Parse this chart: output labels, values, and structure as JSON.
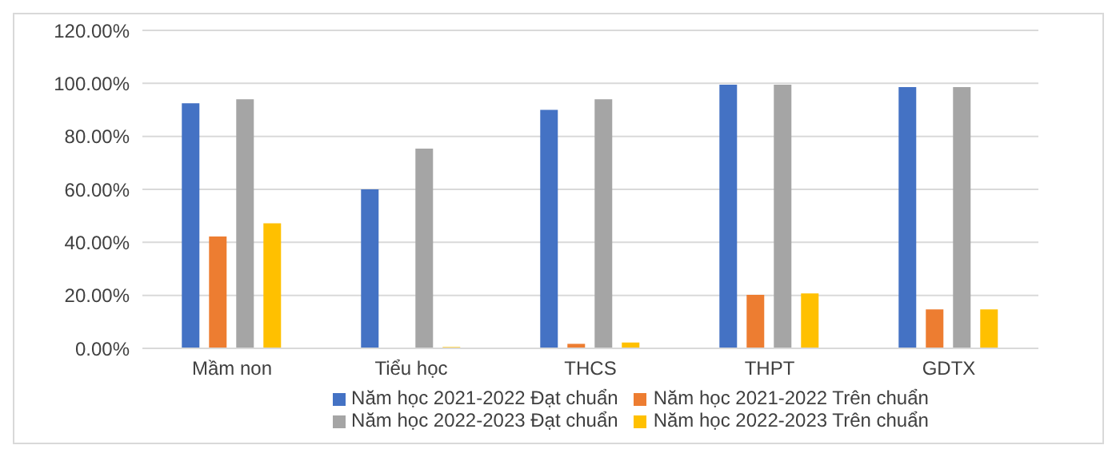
{
  "chart_data": {
    "type": "bar",
    "categories": [
      "Mầm non",
      "Tiểu học",
      "THCS",
      "THPT",
      "GDTX"
    ],
    "series": [
      {
        "name": "Năm học 2021-2022 Đạt chuẩn",
        "color": "#4472c4",
        "values": [
          92.5,
          60,
          90,
          99.5,
          98.6
        ]
      },
      {
        "name": "Năm học 2021-2022 Trên chuẩn",
        "color": "#ed7d31",
        "values": [
          42.2,
          0,
          1.7,
          20.2,
          14.7
        ]
      },
      {
        "name": "Năm học 2022-2023 Đạt chuẩn",
        "color": "#a5a5a5",
        "values": [
          94,
          75.4,
          94,
          99.5,
          98.6
        ]
      },
      {
        "name": "Năm học 2022-2023 Trên chuẩn",
        "color": "#ffc000",
        "values": [
          47.2,
          0.5,
          2.2,
          20.7,
          14.7
        ]
      }
    ],
    "ylim": [
      0,
      120
    ],
    "yticks": [
      {
        "value": 0,
        "label": "0.00%"
      },
      {
        "value": 20,
        "label": "20.00%"
      },
      {
        "value": 40,
        "label": "40.00%"
      },
      {
        "value": 60,
        "label": "60.00%"
      },
      {
        "value": 80,
        "label": "80.00%"
      },
      {
        "value": 100,
        "label": "100.00%"
      },
      {
        "value": 120,
        "label": "120.00%"
      }
    ],
    "grid": "y",
    "legend": "bottom"
  }
}
